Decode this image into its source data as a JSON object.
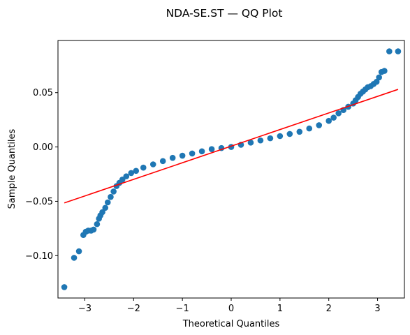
{
  "chart_data": {
    "type": "scatter",
    "title": "NDA-SE.ST — QQ Plot",
    "xlabel": "Theoretical Quantiles",
    "ylabel": "Sample Quantiles",
    "xlim": [
      -3.55,
      3.55
    ],
    "ylim": [
      -0.139,
      0.098
    ],
    "x_ticks": [
      -3,
      -2,
      -1,
      0,
      1,
      2,
      3
    ],
    "x_tick_labels": [
      "−3",
      "−2",
      "−1",
      "0",
      "1",
      "2",
      "3"
    ],
    "y_ticks": [
      -0.1,
      -0.05,
      0.0,
      0.05
    ],
    "y_tick_labels": [
      "−0.10",
      "−0.05",
      "0.00",
      "0.05"
    ],
    "grid": false,
    "point_color": "#1f77b4",
    "line_color": "#ff0000",
    "reference_line": {
      "x": [
        -3.42,
        3.42
      ],
      "y": [
        -0.0515,
        0.053
      ]
    },
    "points": {
      "x": [
        -3.42,
        -3.22,
        -3.12,
        -3.03,
        -2.98,
        -2.93,
        -2.87,
        -2.82,
        -2.75,
        -2.71,
        -2.68,
        -2.64,
        -2.58,
        -2.53,
        -2.47,
        -2.41,
        -2.35,
        -2.29,
        -2.23,
        -2.15,
        -2.05,
        -1.95,
        -1.8,
        -1.6,
        -1.4,
        -1.2,
        -1.0,
        -0.8,
        -0.6,
        -0.4,
        -0.2,
        0.0,
        0.2,
        0.4,
        0.6,
        0.8,
        1.0,
        1.2,
        1.4,
        1.6,
        1.8,
        2.0,
        2.1,
        2.2,
        2.3,
        2.4,
        2.5,
        2.55,
        2.6,
        2.65,
        2.7,
        2.75,
        2.8,
        2.86,
        2.92,
        2.98,
        3.03,
        3.08,
        3.14,
        3.24,
        3.42
      ],
      "y": [
        -0.129,
        -0.102,
        -0.096,
        -0.081,
        -0.078,
        -0.077,
        -0.077,
        -0.076,
        -0.071,
        -0.066,
        -0.063,
        -0.06,
        -0.056,
        -0.051,
        -0.046,
        -0.041,
        -0.036,
        -0.033,
        -0.03,
        -0.027,
        -0.024,
        -0.022,
        -0.019,
        -0.016,
        -0.013,
        -0.01,
        -0.008,
        -0.006,
        -0.004,
        -0.002,
        -0.001,
        0.0,
        0.002,
        0.004,
        0.006,
        0.008,
        0.01,
        0.012,
        0.014,
        0.017,
        0.02,
        0.024,
        0.027,
        0.031,
        0.034,
        0.037,
        0.04,
        0.043,
        0.046,
        0.049,
        0.051,
        0.053,
        0.055,
        0.056,
        0.058,
        0.06,
        0.064,
        0.069,
        0.07,
        0.088,
        0.088
      ]
    }
  }
}
